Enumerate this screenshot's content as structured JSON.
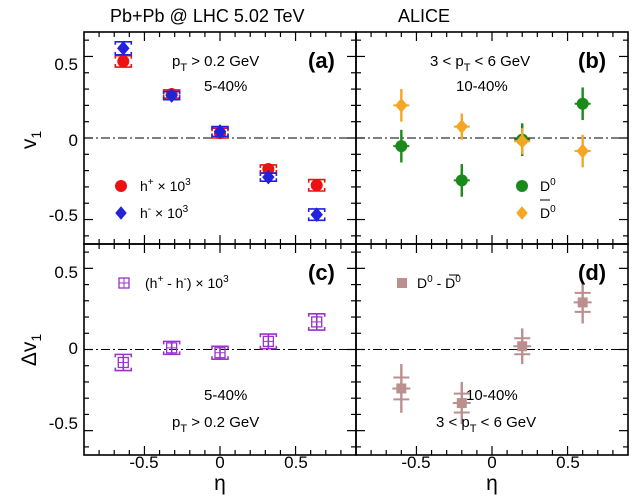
{
  "header": {
    "collision": "Pb+Pb @ LHC 5.02 TeV",
    "experiment": "ALICE"
  },
  "colors": {
    "h_plus": "#ee1111",
    "h_minus": "#2222dd",
    "D0": "#1a8a1a",
    "D0bar": "#f5a623",
    "h_diff": "#9933cc",
    "D_diff": "#bc8f8f"
  },
  "panels": {
    "a": {
      "label": "(a)",
      "text1": "p",
      "text1_sub": "T",
      "text1_rest": " > 0.2 GeV",
      "text2": "5-40%",
      "legend": [
        {
          "label": "h",
          "sup": "+",
          "tail": " × 10",
          "exp": "3",
          "marker": "circle"
        },
        {
          "label": "h",
          "sup": "-",
          "tail": " × 10",
          "exp": "3",
          "marker": "diamond"
        }
      ]
    },
    "b": {
      "label": "(b)",
      "text1": "3 < p",
      "text1_sub": "T",
      "text1_rest": " < 6 GeV",
      "text2": "10-40%",
      "legend": [
        {
          "label": "D",
          "sup": "0",
          "marker": "circle"
        },
        {
          "label": "D",
          "sup": "0",
          "bar": true,
          "marker": "diamond"
        }
      ]
    },
    "c": {
      "label": "(c)",
      "legend": "(h",
      "legend_parts": [
        "(h",
        "+",
        " - h",
        "-",
        ") × 10",
        "3"
      ],
      "text1": "5-40%",
      "text2": "p",
      "text2_sub": "T",
      "text2_rest": " > 0.2 GeV"
    },
    "d": {
      "label": "(d)",
      "legend_parts": [
        "D",
        "0",
        " - D",
        "0"
      ],
      "text1": "10-40%",
      "text2": "3 < p",
      "text2_sub": "T",
      "text2_rest": " < 6 GeV"
    }
  },
  "axes": {
    "xlabel": "η",
    "ylabel_top": "v",
    "ylabel_top_sub": "1",
    "ylabel_bottom": "Δv",
    "ylabel_bottom_sub": "1",
    "xticks_left": [
      "-0.5",
      "0",
      "0.5"
    ],
    "xticks_right": [
      "-0.5",
      "0",
      "0.5"
    ],
    "yticks_top": [
      "0.5",
      "0",
      "-0.5"
    ],
    "yticks_bottom": [
      "0.5",
      "0",
      "-0.5"
    ]
  },
  "chart_data": [
    {
      "type": "scatter",
      "panel": "a",
      "xlim": [
        -0.9,
        0.9
      ],
      "ylim": [
        -0.65,
        0.65
      ],
      "series": [
        {
          "name": "h+ × 10^3",
          "color": "#ee1111",
          "marker": "circle",
          "x": [
            -0.64,
            -0.32,
            0.0,
            0.32,
            0.64
          ],
          "y": [
            0.47,
            0.27,
            0.03,
            -0.19,
            -0.29
          ],
          "err": [
            0.035,
            0.025,
            0.03,
            0.025,
            0.035
          ]
        },
        {
          "name": "h- × 10^3",
          "color": "#2222dd",
          "marker": "diamond",
          "x": [
            -0.64,
            -0.32,
            0.0,
            0.32,
            0.64
          ],
          "y": [
            0.55,
            0.26,
            0.04,
            -0.24,
            -0.47
          ],
          "err": [
            0.04,
            0.025,
            0.03,
            0.025,
            0.035
          ]
        }
      ]
    },
    {
      "type": "scatter",
      "panel": "b",
      "xlim": [
        -0.9,
        0.9
      ],
      "ylim": [
        -0.65,
        0.65
      ],
      "series": [
        {
          "name": "D0",
          "color": "#1a8a1a",
          "marker": "circle",
          "x": [
            -0.6,
            -0.2,
            0.2,
            0.6
          ],
          "y": [
            -0.05,
            -0.26,
            -0.01,
            0.21
          ],
          "err": [
            0.1,
            0.1,
            0.1,
            0.1
          ]
        },
        {
          "name": "D0bar",
          "color": "#f5a623",
          "marker": "diamond",
          "x": [
            -0.6,
            -0.2,
            0.2,
            0.6
          ],
          "y": [
            0.2,
            0.07,
            -0.02,
            -0.08
          ],
          "err": [
            0.1,
            0.08,
            0.08,
            0.1
          ]
        }
      ]
    },
    {
      "type": "scatter",
      "panel": "c",
      "xlim": [
        -0.9,
        0.9
      ],
      "ylim": [
        -0.65,
        0.65
      ],
      "series": [
        {
          "name": "(h+ - h-) × 10^3",
          "color": "#9933cc",
          "marker": "open-square-hatched",
          "x": [
            -0.64,
            -0.32,
            0.0,
            0.32,
            0.64
          ],
          "y": [
            -0.08,
            0.01,
            -0.02,
            0.05,
            0.17
          ],
          "err": [
            0.05,
            0.04,
            0.04,
            0.045,
            0.05
          ]
        }
      ]
    },
    {
      "type": "scatter",
      "panel": "d",
      "xlim": [
        -0.9,
        0.9
      ],
      "ylim": [
        -0.65,
        0.65
      ],
      "series": [
        {
          "name": "D0 - D0bar",
          "color": "#bc8f8f",
          "marker": "square",
          "x": [
            -0.6,
            -0.2,
            0.2,
            0.6
          ],
          "y": [
            -0.24,
            -0.33,
            0.02,
            0.29
          ],
          "err": [
            0.15,
            0.13,
            0.11,
            0.13
          ]
        }
      ]
    }
  ]
}
